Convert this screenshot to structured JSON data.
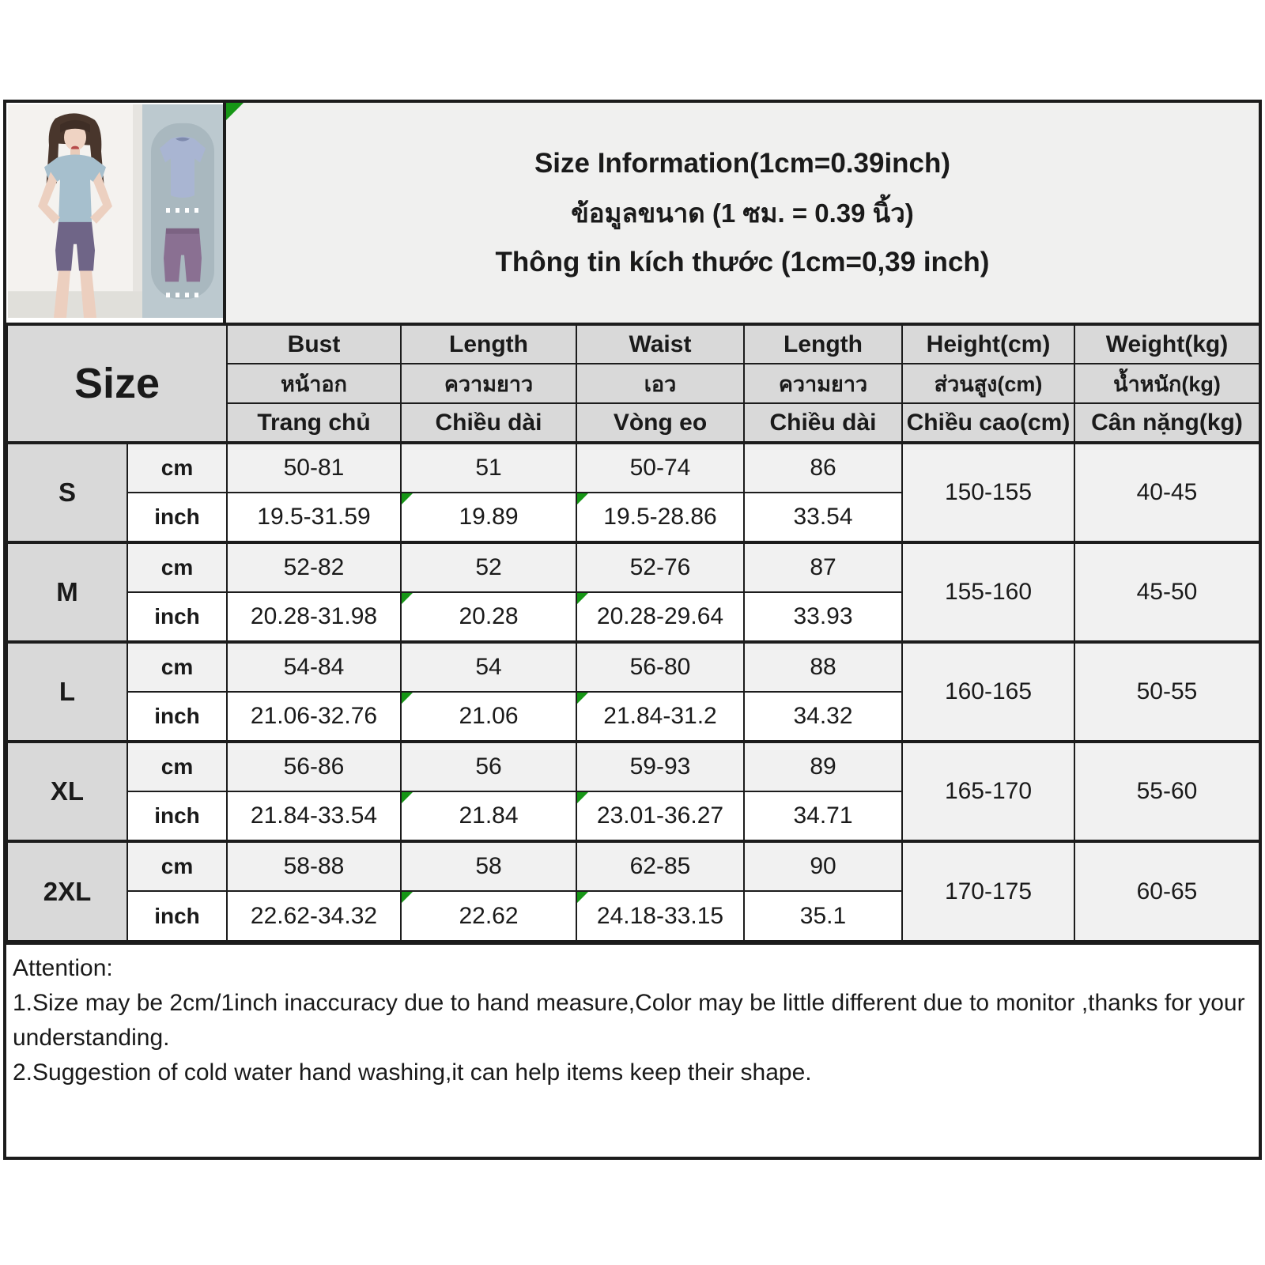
{
  "title": {
    "en": "Size Information(1cm=0.39inch)",
    "th": "ข้อมูลขนาด (1 ซม. = 0.39 นิ้ว)",
    "vi": "Thông tin kích thước (1cm=0,39 inch)"
  },
  "photos": {
    "model_photo_alt": "model wearing blue short-sleeve top and purple biker shorts",
    "set_photo_alt": "product flat-lay of blue tee and purple shorts"
  },
  "icons": {
    "cell_flag": "green-corner-flag"
  },
  "colors": {
    "header_fill": "#d9d9d9",
    "band_fill": "#f1f1f1",
    "title_fill": "#f0f0ef",
    "border": "#1c1c1c",
    "flag_green": "#169616",
    "tee_blue": "#a9b5d2",
    "shorts_purple": "#8a7092",
    "set_photo_bg": "#bcc9cf"
  },
  "table": {
    "corner_label": "Size",
    "columns": [
      {
        "en": "Bust",
        "th": "หน้าอก",
        "vi": "Trang chủ"
      },
      {
        "en": "Length",
        "th": "ความยาว",
        "vi": "Chiều dài"
      },
      {
        "en": "Waist",
        "th": "เอว",
        "vi": "Vòng eo"
      },
      {
        "en": "Length",
        "th": "ความยาว",
        "vi": "Chiều dài"
      },
      {
        "en": "Height(cm)",
        "th": "ส่วนสูง(cm)",
        "vi": "Chiều cao(cm)"
      },
      {
        "en": "Weight(kg)",
        "th": "น้ำหนัก(kg)",
        "vi": "Cân nặng(kg)"
      }
    ],
    "unit_labels": {
      "cm": "cm",
      "inch": "inch"
    },
    "flag_columns": [
      1,
      2
    ],
    "rows": [
      {
        "size": "S",
        "cm": [
          "50-81",
          "51",
          "50-74",
          "86"
        ],
        "inch": [
          "19.5-31.59",
          "19.89",
          "19.5-28.86",
          "33.54"
        ],
        "height": "150-155",
        "weight": "40-45"
      },
      {
        "size": "M",
        "cm": [
          "52-82",
          "52",
          "52-76",
          "87"
        ],
        "inch": [
          "20.28-31.98",
          "20.28",
          "20.28-29.64",
          "33.93"
        ],
        "height": "155-160",
        "weight": "45-50"
      },
      {
        "size": "L",
        "cm": [
          "54-84",
          "54",
          "56-80",
          "88"
        ],
        "inch": [
          "21.06-32.76",
          "21.06",
          "21.84-31.2",
          "34.32"
        ],
        "height": "160-165",
        "weight": "50-55"
      },
      {
        "size": "XL",
        "cm": [
          "56-86",
          "56",
          "59-93",
          "89"
        ],
        "inch": [
          "21.84-33.54",
          "21.84",
          "23.01-36.27",
          "34.71"
        ],
        "height": "165-170",
        "weight": "55-60"
      },
      {
        "size": "2XL",
        "cm": [
          "58-88",
          "58",
          "62-85",
          "90"
        ],
        "inch": [
          "22.62-34.32",
          "22.62",
          "24.18-33.15",
          "35.1"
        ],
        "height": "170-175",
        "weight": "60-65"
      }
    ]
  },
  "attention": {
    "heading": "Attention:",
    "line1": "1.Size may be 2cm/1inch inaccuracy due to hand measure,Color may be little different due to monitor ,thanks for your understanding.",
    "line2": "2.Suggestion of cold water hand washing,it can help items keep their shape."
  }
}
